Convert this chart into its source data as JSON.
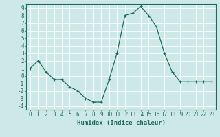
{
  "x": [
    0,
    1,
    2,
    3,
    4,
    5,
    6,
    7,
    8,
    9,
    10,
    11,
    12,
    13,
    14,
    15,
    16,
    17,
    18,
    19,
    20,
    21,
    22,
    23
  ],
  "y": [
    1.0,
    2.0,
    0.5,
    -0.5,
    -0.5,
    -1.5,
    -2.0,
    -3.0,
    -3.5,
    -3.5,
    -0.5,
    3.0,
    8.0,
    8.3,
    9.2,
    8.0,
    6.5,
    3.0,
    0.5,
    -0.8,
    -0.8,
    -0.8,
    -0.8,
    -0.8
  ],
  "line_color": "#1a6b5a",
  "marker": "+",
  "marker_size": 3,
  "marker_linewidth": 0.8,
  "line_width": 0.9,
  "xlabel": "Humidex (Indice chaleur)",
  "xlim": [
    -0.5,
    23.5
  ],
  "ylim": [
    -4.5,
    9.5
  ],
  "yticks": [
    -4,
    -3,
    -2,
    -1,
    0,
    1,
    2,
    3,
    4,
    5,
    6,
    7,
    8,
    9
  ],
  "xticks": [
    0,
    1,
    2,
    3,
    4,
    5,
    6,
    7,
    8,
    9,
    10,
    11,
    12,
    13,
    14,
    15,
    16,
    17,
    18,
    19,
    20,
    21,
    22,
    23
  ],
  "bg_color": "#cce8e8",
  "grid_color": "#ffffff",
  "tick_color": "#1a6b5a",
  "label_color": "#1a6b5a",
  "xlabel_fontsize": 6.5,
  "tick_fontsize": 5.5,
  "spine_color": "#1a6b5a"
}
